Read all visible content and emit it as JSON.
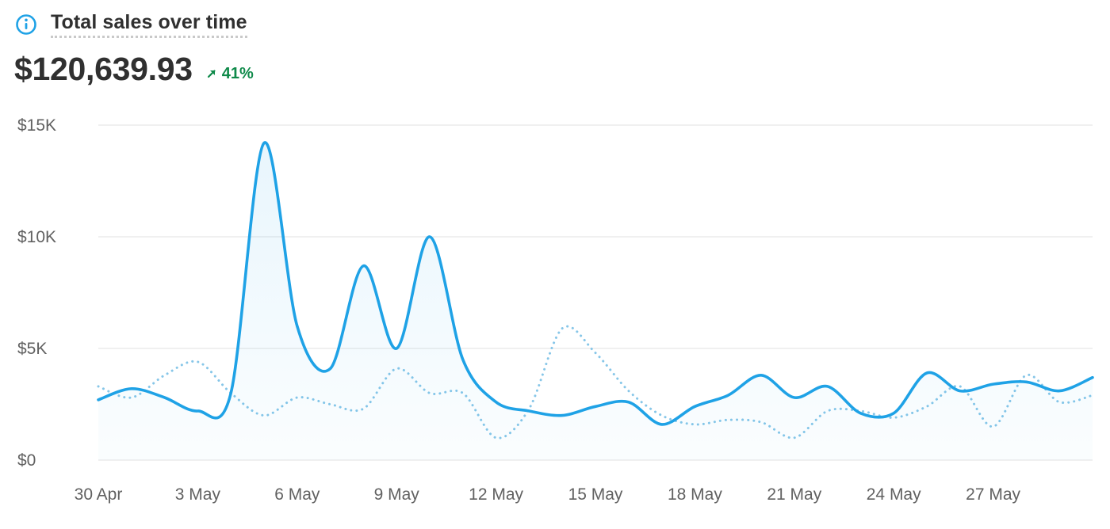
{
  "header": {
    "title": "Total sales over time",
    "info_icon": "info-icon"
  },
  "summary": {
    "total": "$120,639.93",
    "change": "41%",
    "trend_icon": "arrow-up-right-icon",
    "trend_color": "#0f8a4a"
  },
  "chart_data": {
    "type": "line",
    "x": [
      "30 Apr",
      "1 May",
      "2 May",
      "3 May",
      "4 May",
      "5 May",
      "6 May",
      "7 May",
      "8 May",
      "9 May",
      "10 May",
      "11 May",
      "12 May",
      "13 May",
      "14 May",
      "15 May",
      "16 May",
      "17 May",
      "18 May",
      "19 May",
      "20 May",
      "21 May",
      "22 May",
      "23 May",
      "24 May",
      "25 May",
      "26 May",
      "27 May",
      "28 May",
      "29 May",
      "30 May"
    ],
    "x_tick_labels": [
      "30 Apr",
      "3 May",
      "6 May",
      "9 May",
      "12 May",
      "15 May",
      "18 May",
      "21 May",
      "24 May",
      "27 May"
    ],
    "y_tick_labels": [
      "$0",
      "$5K",
      "$10K",
      "$15K"
    ],
    "ylim": [
      0,
      15000
    ],
    "grid": true,
    "series": [
      {
        "style": "solid",
        "color": "#1fa2e6",
        "values": [
          2700,
          3200,
          2800,
          2200,
          3000,
          14200,
          6000,
          4100,
          8700,
          5000,
          10000,
          4500,
          2600,
          2200,
          2000,
          2400,
          2600,
          1600,
          2400,
          2900,
          3800,
          2800,
          3300,
          2100,
          2100,
          3900,
          3100,
          3400,
          3500,
          3100,
          3700
        ]
      },
      {
        "style": "dotted",
        "color": "#86c6e8",
        "values": [
          3300,
          2800,
          3800,
          4400,
          3000,
          2000,
          2800,
          2500,
          2300,
          4100,
          3000,
          3000,
          1000,
          2300,
          5900,
          4800,
          3100,
          2000,
          1600,
          1800,
          1700,
          1000,
          2200,
          2200,
          1900,
          2400,
          3300,
          1500,
          3800,
          2600,
          2900
        ]
      }
    ]
  }
}
